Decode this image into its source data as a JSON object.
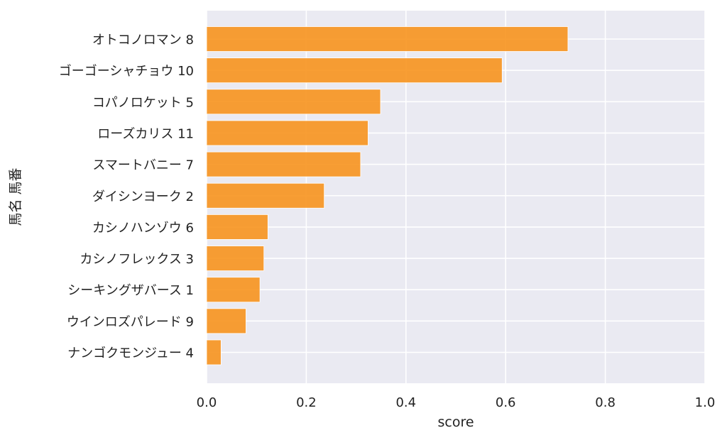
{
  "chart_data": {
    "type": "bar",
    "orientation": "horizontal",
    "categories": [
      "オトコノロマン 8",
      "ゴーゴーシャチョウ 10",
      "コパノロケット 5",
      "ローズカリス 11",
      "スマートバニー 7",
      "ダイシンヨーク 2",
      "カシノハンゾウ 6",
      "カシノフレックス 3",
      "シーキングザバース 1",
      "ウインロズパレード 9",
      "ナンゴクモンジュー 4"
    ],
    "values": [
      0.725,
      0.593,
      0.349,
      0.324,
      0.309,
      0.236,
      0.123,
      0.115,
      0.107,
      0.079,
      0.029
    ],
    "xlabel": "score",
    "ylabel": "馬名 馬番",
    "xlim": [
      0.0,
      1.0
    ],
    "xticks": [
      "0.0",
      "0.2",
      "0.4",
      "0.6",
      "0.8",
      "1.0"
    ],
    "grid": true,
    "bar_color": "#f7931e",
    "background_color": "#eaeaf2"
  }
}
